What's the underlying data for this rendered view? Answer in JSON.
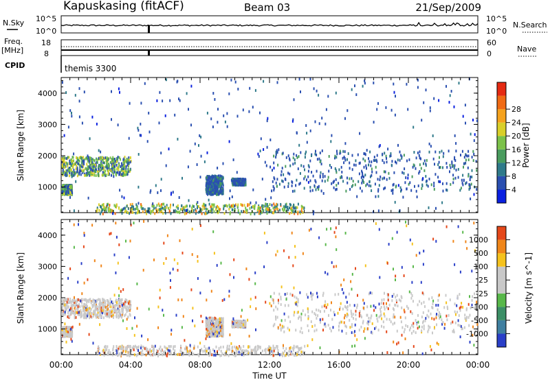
{
  "header": {
    "station": "Kapuskasing (fitACF)",
    "beam": "Beam 03",
    "date": "21/Sep/2009"
  },
  "top_panels": {
    "nsky_label": "N.Sky",
    "nsearch_label": "N.Search",
    "nsky_ticks": [
      "10^5",
      "10^0"
    ],
    "nsearch_ticks": [
      "10^5",
      "10^0"
    ],
    "freq_label": "Freq.",
    "freq_unit": "[MHz]",
    "freq_ticks": [
      "18",
      "8"
    ],
    "nave_label": "Nave",
    "nave_ticks": [
      "60",
      "0"
    ],
    "cpid_label": "CPID",
    "cpid_value": "themis 3300"
  },
  "chart_data": [
    {
      "type": "heatmap",
      "parameter": "Power",
      "ylabel": "Slant Range [km]",
      "xlabel": "",
      "yticks": [
        "1000",
        "2000",
        "3000",
        "4000"
      ],
      "ylim": [
        180,
        4500
      ],
      "xlim": [
        "00:00",
        "24:00"
      ],
      "colorbar": {
        "label": "Power [dB]",
        "ticks": [
          "4",
          "8",
          "12",
          "16",
          "20",
          "24",
          "28"
        ],
        "colors": [
          "#0a20e0",
          "#2a4fb0",
          "#2f7a8a",
          "#4a9c5e",
          "#7cc24a",
          "#d9cf2a",
          "#f5a21d",
          "#f06a14",
          "#e52a12"
        ]
      },
      "regions": [
        {
          "t_start": 0.0,
          "t_end": 4.0,
          "r_start": 1400,
          "r_end": 2000,
          "level": "strong"
        },
        {
          "t_start": 0.0,
          "t_end": 0.6,
          "r_start": 800,
          "r_end": 1100,
          "level": "strong"
        },
        {
          "t_start": 8.3,
          "t_end": 9.3,
          "r_start": 800,
          "r_end": 1400,
          "level": "weak"
        },
        {
          "t_start": 9.8,
          "t_end": 10.6,
          "r_start": 1100,
          "r_end": 1300,
          "level": "weak"
        },
        {
          "t_start": 12.0,
          "t_end": 24.0,
          "r_start": 900,
          "r_end": 2200,
          "level": "weak"
        },
        {
          "t_start": 2.0,
          "t_end": 14.0,
          "r_start": 180,
          "r_end": 500,
          "level": "ground"
        }
      ]
    },
    {
      "type": "heatmap",
      "parameter": "Velocity",
      "ylabel": "Slant Range [km]",
      "xlabel": "Time UT",
      "yticks": [
        "1000",
        "2000",
        "3000",
        "4000"
      ],
      "ylim": [
        180,
        4500
      ],
      "xlim": [
        "00:00",
        "24:00"
      ],
      "xticks": [
        "00:00",
        "04:00",
        "08:00",
        "12:00",
        "16:00",
        "20:00",
        "00:00"
      ],
      "colorbar": {
        "label": "Velocity [m s^-1]",
        "ticks": [
          "1000",
          "500",
          "100",
          "25",
          "-25",
          "-100",
          "-500",
          "-1000"
        ],
        "colors": [
          "#2a3fc8",
          "#3f7fa0",
          "#3c8f66",
          "#58b84a",
          "#c8c8c8",
          "#c8c8c8",
          "#f5c21d",
          "#f0861a",
          "#e5481a"
        ]
      }
    }
  ]
}
